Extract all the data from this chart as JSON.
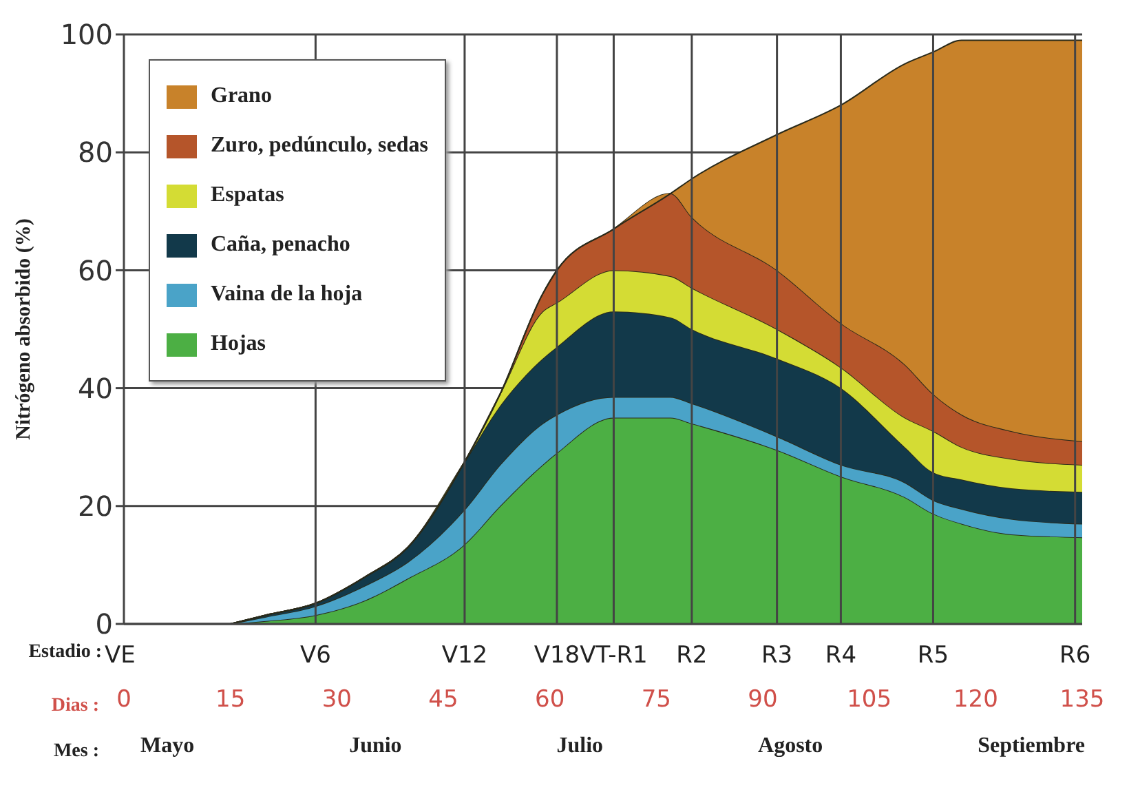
{
  "chart_data": {
    "type": "area",
    "stacked": true,
    "ylabel": "Nitrógeno absorbido (%)",
    "xlabel": "Dias :",
    "x": [
      15,
      20,
      27,
      34,
      40,
      48,
      53,
      59,
      61,
      69,
      77,
      80,
      92,
      101,
      110,
      114,
      118,
      125,
      135
    ],
    "series": [
      {
        "name": "Hojas",
        "color": "#4caf44",
        "values": [
          0,
          0.5,
          1.5,
          4,
          7.7,
          13.5,
          20,
          27,
          29,
          35,
          35,
          34,
          29.5,
          25,
          21.5,
          18.7,
          17,
          15.2,
          14.7
        ]
      },
      {
        "name": "Vaina de la hoja",
        "color": "#4aa3c8",
        "values": [
          0,
          0.7,
          1.5,
          2.5,
          2.8,
          5.9,
          7,
          7,
          6.5,
          3.5,
          3.5,
          3.4,
          2.3,
          2,
          2.5,
          2.3,
          2.5,
          2.6,
          2.3
        ]
      },
      {
        "name": "Caña, penacho",
        "color": "#12394a",
        "values": [
          0,
          0.3,
          0.5,
          1.5,
          2.5,
          8.1,
          10,
          11,
          11.5,
          14.5,
          13.5,
          12.6,
          13.2,
          13,
          6,
          4.7,
          5,
          5.2,
          5.4
        ]
      },
      {
        "name": "Espatas",
        "color": "#d4dc34",
        "values": [
          0,
          0,
          0,
          0,
          0,
          0,
          2,
          8,
          7.5,
          7,
          7,
          7,
          5,
          3.5,
          5,
          7,
          5.5,
          5,
          4.6
        ]
      },
      {
        "name": "Zuro, pedúnculo, sedas",
        "color": "#b5552a",
        "values": [
          0,
          0,
          0,
          0,
          0,
          0,
          0,
          3,
          5.5,
          7,
          14,
          12,
          10,
          7.5,
          9,
          6.3,
          5.5,
          4.7,
          4
        ]
      },
      {
        "name": "Grano",
        "color": "#c8822a",
        "values": [
          0,
          0,
          0,
          0,
          0,
          0,
          0,
          0,
          0,
          0,
          0,
          6.5,
          23,
          37,
          51,
          58,
          63.5,
          66.3,
          68
        ]
      }
    ],
    "xlim": [
      0,
      135
    ],
    "xticks": [
      0,
      15,
      30,
      45,
      60,
      75,
      90,
      105,
      120,
      135
    ],
    "ylim": [
      0,
      100
    ],
    "yticks": [
      0,
      20,
      40,
      60,
      80,
      100
    ],
    "ref_lines": [
      {
        "axis": "x",
        "value": 27,
        "label": "V6"
      },
      {
        "axis": "x",
        "value": 48,
        "label": "V12"
      },
      {
        "axis": "x",
        "value": 61,
        "label": "V18"
      },
      {
        "axis": "x",
        "value": 69,
        "label": "VT-R1"
      },
      {
        "axis": "x",
        "value": 80,
        "label": "R2"
      },
      {
        "axis": "x",
        "value": 92,
        "label": "R3"
      },
      {
        "axis": "x",
        "value": 101,
        "label": "R4"
      },
      {
        "axis": "x",
        "value": 114,
        "label": "R5"
      },
      {
        "axis": "x",
        "value": 134,
        "label": "R6"
      }
    ],
    "annotations": [
      "Estadio :",
      "VE",
      "Mes :",
      "Mayo",
      "Junio",
      "Julio",
      "Agosto",
      "Septiembre"
    ],
    "grid": "y",
    "legend": "top left"
  }
}
